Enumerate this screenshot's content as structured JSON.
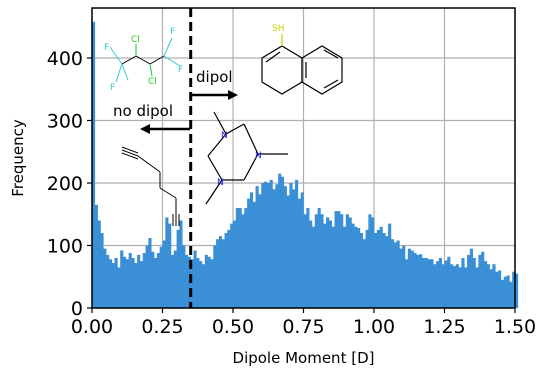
{
  "chart_data": {
    "type": "bar",
    "xlabel": "Dipole Moment [D]",
    "ylabel": "Frequency",
    "xlim": [
      0,
      1.5
    ],
    "ylim": [
      0,
      480
    ],
    "xticks": [
      0.0,
      0.25,
      0.5,
      0.75,
      1.0,
      1.25,
      1.5
    ],
    "xtick_labels": [
      "0.00",
      "0.25",
      "0.50",
      "0.75",
      "1.00",
      "1.25",
      "1.50"
    ],
    "yticks": [
      0,
      100,
      200,
      300,
      400
    ],
    "ytick_labels": [
      "0",
      "100",
      "200",
      "300",
      "400"
    ],
    "grid": true,
    "bar_color": "#3a8fd6",
    "bin_width": 0.01,
    "bin_start": 0.0,
    "values": [
      458,
      165,
      140,
      120,
      95,
      85,
      78,
      72,
      80,
      65,
      92,
      82,
      78,
      88,
      80,
      72,
      85,
      75,
      88,
      100,
      112,
      90,
      80,
      88,
      98,
      108,
      145,
      135,
      85,
      92,
      125,
      140,
      100,
      85,
      82,
      78,
      92,
      80,
      75,
      70,
      85,
      82,
      78,
      100,
      110,
      115,
      110,
      120,
      125,
      135,
      140,
      160,
      160,
      150,
      160,
      175,
      185,
      170,
      195,
      182,
      200,
      202,
      200,
      205,
      190,
      198,
      215,
      210,
      195,
      180,
      200,
      190,
      205,
      175,
      185,
      150,
      160,
      140,
      130,
      150,
      160,
      150,
      135,
      145,
      140,
      130,
      155,
      155,
      150,
      130,
      150,
      145,
      135,
      130,
      128,
      120,
      110,
      125,
      150,
      145,
      120,
      125,
      130,
      120,
      115,
      135,
      110,
      105,
      108,
      95,
      100,
      78,
      95,
      92,
      88,
      85,
      86,
      80,
      80,
      78,
      78,
      70,
      75,
      80,
      70,
      76,
      82,
      70,
      67,
      70,
      65,
      80,
      65,
      85,
      95,
      80,
      65,
      85,
      90,
      75,
      70,
      62,
      70,
      58,
      60,
      45,
      50,
      52,
      42,
      58,
      55
    ],
    "threshold": 0.35,
    "annotations": [
      {
        "text": "dipol",
        "direction": "right"
      },
      {
        "text": "no dipol",
        "direction": "left"
      }
    ],
    "atom_labels": {
      "fluorine": "F",
      "chlorine": "Cl",
      "sulfur": "SH",
      "nitrogen": "N"
    },
    "molecule_colors": {
      "fluorine": "#33cccc",
      "chlorine": "#22cc22",
      "sulfur": "#cccc00",
      "nitrogen": "#2222ee",
      "bond": "#000000"
    }
  }
}
